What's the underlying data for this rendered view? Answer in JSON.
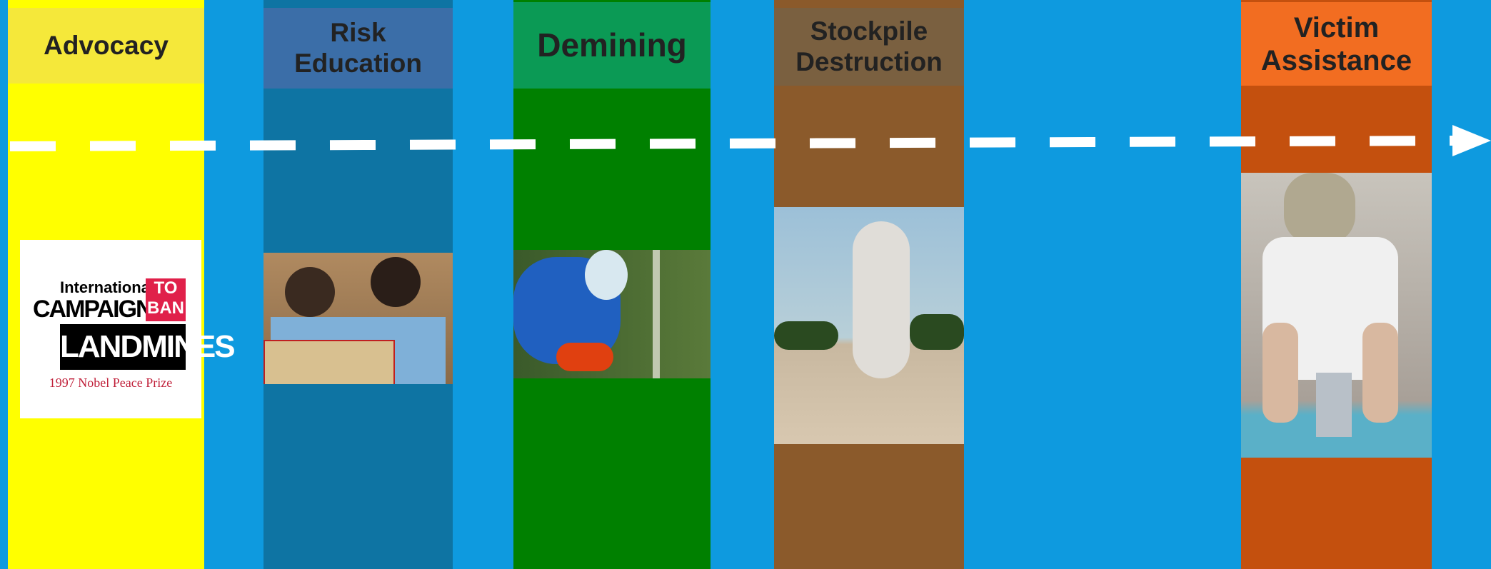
{
  "columns": [
    {
      "title": "Advocacy"
    },
    {
      "title": "Risk Education"
    },
    {
      "title": "Demining"
    },
    {
      "title": "Stockpile Destruction"
    },
    {
      "title": "Victim Assistance"
    }
  ],
  "logo": {
    "line1": "International",
    "line2": "CAMPAIGN",
    "to": "TO",
    "ban": "BAN",
    "line3": "LANDMINES",
    "prize": "1997 Nobel Peace Prize"
  }
}
